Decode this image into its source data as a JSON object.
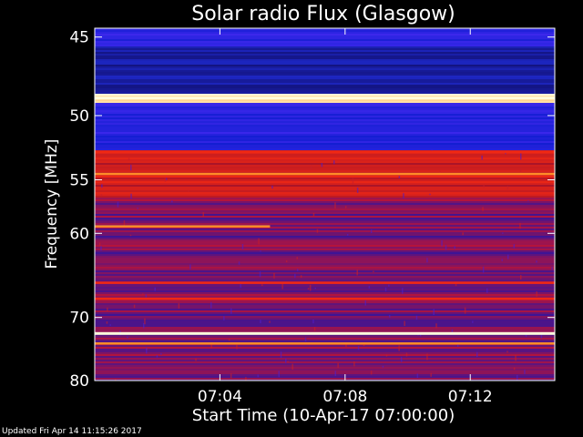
{
  "footer_text": "Updated Fri Apr 14 11:15:26 2017",
  "chart_data": {
    "type": "heatmap",
    "title": "Solar radio Flux (Glasgow)",
    "xlabel": "Start Time (10-Apr-17 07:00:00)",
    "ylabel": "Frequency [MHz]",
    "x_ticks": [
      "07:04",
      "07:08",
      "07:12"
    ],
    "x_tick_minutes": [
      4,
      8,
      12
    ],
    "xlim_minutes": [
      0,
      14.7
    ],
    "y_ticks": [
      45,
      50,
      55,
      60,
      70,
      80
    ],
    "y_scale": "reciprocal",
    "ylim": [
      44.5,
      80
    ],
    "colors": {
      "background": "#000000",
      "low": "#1a1ae6",
      "mid": "#b01030",
      "high": "#ffd060"
    },
    "bands": [
      {
        "from": 44.5,
        "to": 45.5,
        "level": "blue"
      },
      {
        "from": 45.5,
        "to": 48.5,
        "level": "deep-blue"
      },
      {
        "from": 48.5,
        "to": 49.0,
        "level": "intense"
      },
      {
        "from": 49.0,
        "to": 52.5,
        "level": "blue"
      },
      {
        "from": 52.5,
        "to": 56.5,
        "level": "red"
      },
      {
        "from": 56.5,
        "to": 80.0,
        "level": "purple-red"
      }
    ],
    "bright_lines": [
      {
        "freq": 48.8,
        "level": "intense"
      },
      {
        "freq": 52.7,
        "level": "red"
      },
      {
        "freq": 54.5,
        "level": "orange"
      },
      {
        "freq": 59.3,
        "level": "orange",
        "until_minute": 5.6
      },
      {
        "freq": 65.5,
        "level": "red"
      },
      {
        "freq": 67.5,
        "level": "red"
      },
      {
        "freq": 72.3,
        "level": "intense"
      },
      {
        "freq": 73.8,
        "level": "orange"
      }
    ]
  }
}
